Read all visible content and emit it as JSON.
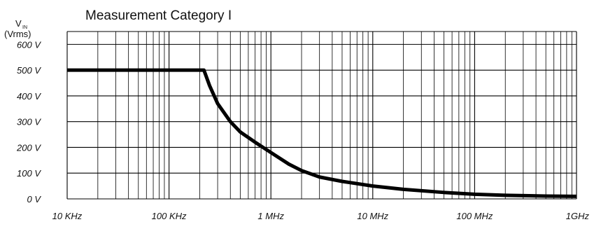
{
  "chart_data": {
    "type": "line",
    "title": "Measurement Category I",
    "ylabel_main": "V",
    "ylabel_sub": "IN",
    "ylabel_unit": "(Vrms)",
    "xscale": "log",
    "xlim": [
      10000,
      1000000000
    ],
    "ylim": [
      0,
      650
    ],
    "grid": true,
    "x_tick_labels": [
      {
        "value": 10000,
        "label": "10 KHz"
      },
      {
        "value": 100000,
        "label": "100 KHz"
      },
      {
        "value": 1000000,
        "label": "1 MHz"
      },
      {
        "value": 10000000,
        "label": "10 MHz"
      },
      {
        "value": 100000000,
        "label": "100 MHz"
      },
      {
        "value": 1000000000,
        "label": "1GHz"
      }
    ],
    "y_tick_labels": [
      {
        "value": 0,
        "label": "0 V"
      },
      {
        "value": 100,
        "label": "100 V"
      },
      {
        "value": 200,
        "label": "200 V"
      },
      {
        "value": 300,
        "label": "300 V"
      },
      {
        "value": 400,
        "label": "400 V"
      },
      {
        "value": 500,
        "label": "500 V"
      },
      {
        "value": 600,
        "label": "600 V"
      }
    ],
    "series": [
      {
        "x": [
          10000,
          100000,
          220000,
          250000,
          300000,
          400000,
          500000,
          700000,
          1000000,
          1500000,
          2000000,
          3000000,
          5000000,
          10000000,
          20000000,
          50000000,
          100000000,
          200000000,
          500000000,
          1000000000
        ],
        "y": [
          500,
          500,
          500,
          440,
          370,
          300,
          260,
          220,
          180,
          135,
          110,
          85,
          68,
          50,
          37,
          25,
          18,
          14,
          11,
          10
        ]
      }
    ]
  }
}
